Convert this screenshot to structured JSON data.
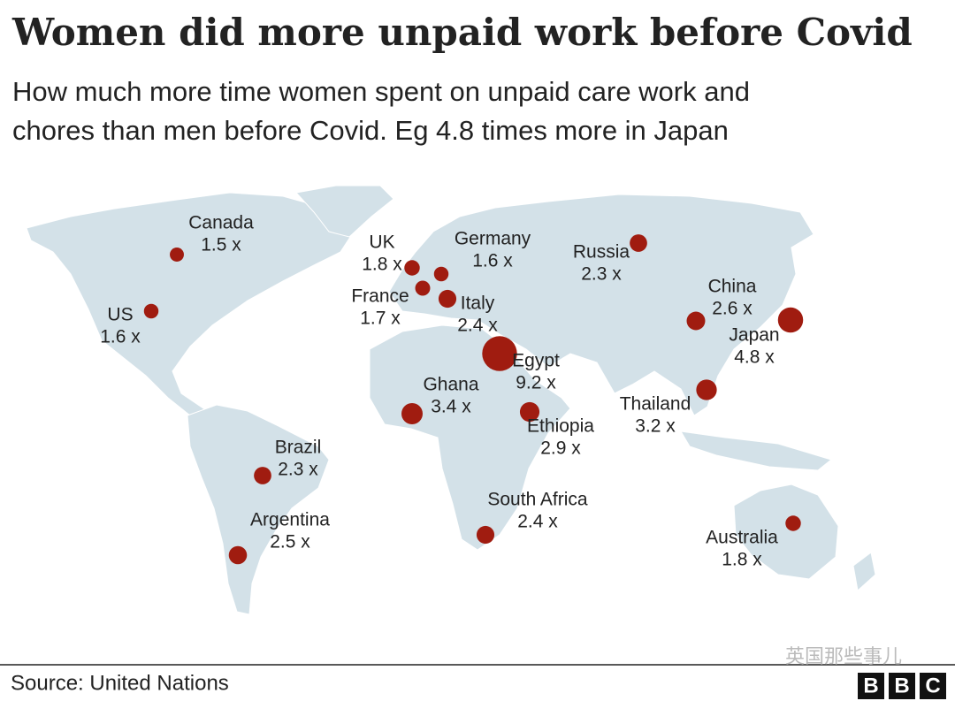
{
  "title": "Women did more unpaid work before Covid",
  "subtitle_lines": [
    "How much more time women spent on unpaid care work and",
    "chores than men before Covid. Eg 4.8 times more in Japan"
  ],
  "points": [
    {
      "name": "Canada",
      "value": 1.5,
      "value_label": "1.5 x"
    },
    {
      "name": "US",
      "value": 1.6,
      "value_label": "1.6 x"
    },
    {
      "name": "UK",
      "value": 1.8,
      "value_label": "1.8 x"
    },
    {
      "name": "Germany",
      "value": 1.6,
      "value_label": "1.6 x"
    },
    {
      "name": "France",
      "value": 1.7,
      "value_label": "1.7 x"
    },
    {
      "name": "Italy",
      "value": 2.4,
      "value_label": "2.4 x"
    },
    {
      "name": "Russia",
      "value": 2.3,
      "value_label": "2.3 x"
    },
    {
      "name": "China",
      "value": 2.6,
      "value_label": "2.6 x"
    },
    {
      "name": "Japan",
      "value": 4.8,
      "value_label": "4.8 x"
    },
    {
      "name": "Egypt",
      "value": 9.2,
      "value_label": "9.2 x"
    },
    {
      "name": "Ghana",
      "value": 3.4,
      "value_label": "3.4 x"
    },
    {
      "name": "Ethiopia",
      "value": 2.9,
      "value_label": "2.9 x"
    },
    {
      "name": "Thailand",
      "value": 3.2,
      "value_label": "3.2 x"
    },
    {
      "name": "Brazil",
      "value": 2.3,
      "value_label": "2.3 x"
    },
    {
      "name": "Argentina",
      "value": 2.5,
      "value_label": "2.5 x"
    },
    {
      "name": "South Africa",
      "value": 2.4,
      "value_label": "2.4 x"
    },
    {
      "name": "Australia",
      "value": 1.8,
      "value_label": "1.8 x"
    }
  ],
  "color": "#a01c10",
  "watermark": "英国那些事儿",
  "source": "Source: United Nations",
  "logo": [
    "B",
    "B",
    "C"
  ]
}
